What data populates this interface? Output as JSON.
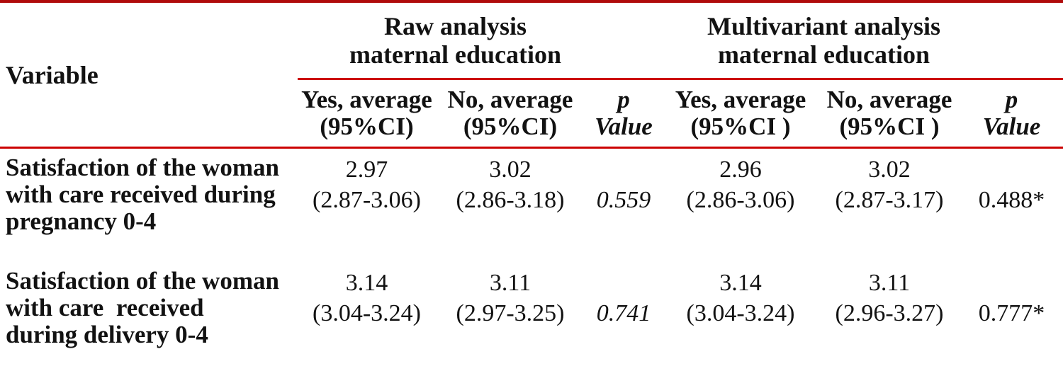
{
  "table": {
    "variable_header": "Variable",
    "groups": [
      {
        "line1": "Raw analysis",
        "line2": "maternal education"
      },
      {
        "line1": "Multivariant analysis",
        "line2": "maternal education"
      }
    ],
    "subheaders": [
      {
        "line1": "Yes, average",
        "line2": "(95%CI)"
      },
      {
        "line1": "No, average",
        "line2": "(95%CI)"
      },
      {
        "line1": "p",
        "line2": "Value"
      },
      {
        "line1": "Yes, average",
        "line2": "(95%CI )"
      },
      {
        "line1": "No, average",
        "line2": "(95%CI )"
      },
      {
        "line1": "p",
        "line2": "Value"
      }
    ],
    "rows": [
      {
        "variable_lines": [
          "Satisfaction of the woman",
          "with care received during",
          "pregnancy 0-4"
        ],
        "raw_yes": {
          "mean": "2.97",
          "ci": "(2.87-3.06)"
        },
        "raw_no": {
          "mean": "3.02",
          "ci": "(2.86-3.18)"
        },
        "raw_p": "0.559",
        "multi_yes": {
          "mean": "2.96",
          "ci": "(2.86-3.06)"
        },
        "multi_no": {
          "mean": "3.02",
          "ci": "(2.87-3.17)"
        },
        "multi_p": "0.488*"
      },
      {
        "variable_lines": [
          "Satisfaction of the woman",
          "with care  received",
          "during delivery 0-4"
        ],
        "raw_yes": {
          "mean": "3.14",
          "ci": "(3.04-3.24)"
        },
        "raw_no": {
          "mean": "3.11",
          "ci": "(2.97-3.25)"
        },
        "raw_p": "0.741",
        "multi_yes": {
          "mean": "3.14",
          "ci": "(3.04-3.24)"
        },
        "multi_no": {
          "mean": "3.11",
          "ci": "(2.96-3.27)"
        },
        "multi_p": "0.777*"
      }
    ],
    "colors": {
      "thick_rule": "#b00b0b",
      "thin_rule": "#cc0000",
      "text": "#121212"
    }
  }
}
